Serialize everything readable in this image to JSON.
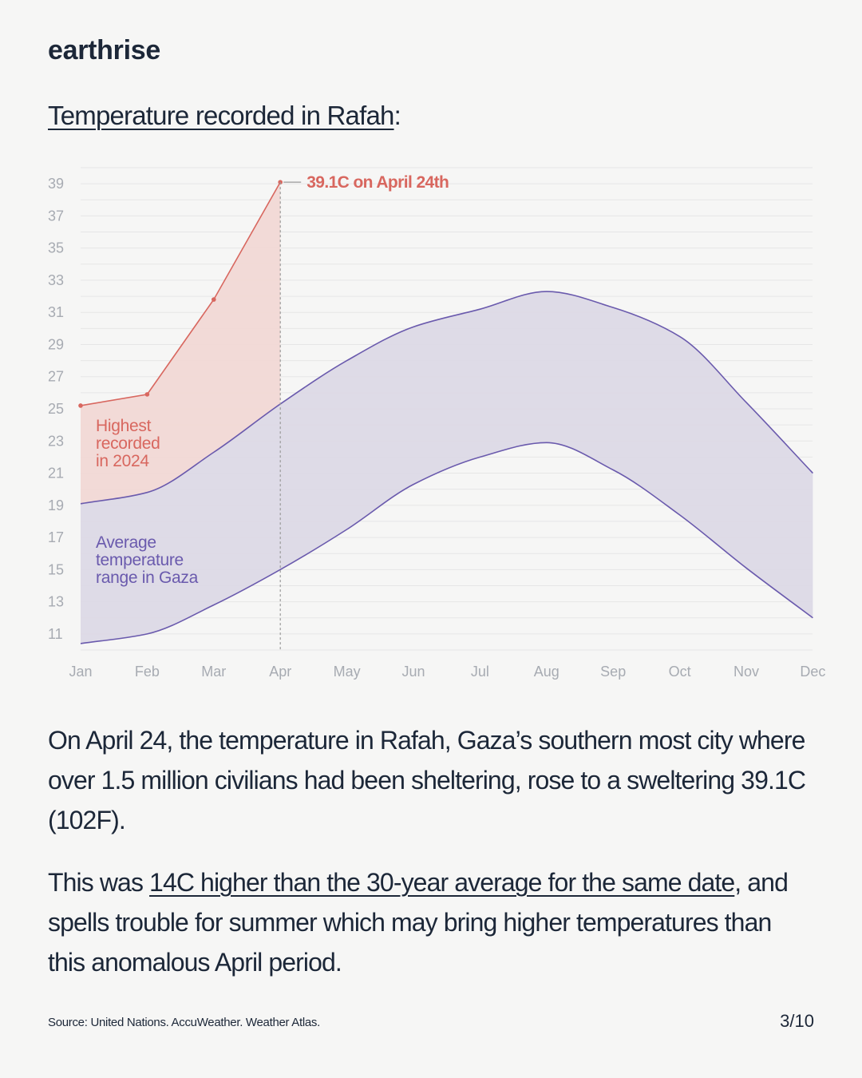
{
  "brand": "earthrise",
  "heading": {
    "link_text": "Temperature recorded in Rafah",
    "suffix": ":"
  },
  "chart_data": {
    "type": "area",
    "categories": [
      "Jan",
      "Feb",
      "Mar",
      "Apr",
      "May",
      "Jun",
      "Jul",
      "Aug",
      "Sep",
      "Oct",
      "Nov",
      "Dec"
    ],
    "yticks": [
      39,
      37,
      35,
      33,
      31,
      29,
      27,
      25,
      23,
      21,
      19,
      17,
      15,
      13,
      11
    ],
    "ylim": [
      10,
      40
    ],
    "grid": true,
    "series": [
      {
        "name": "Highest recorded in 2024",
        "name_lines": [
          "Highest",
          "recorded",
          "in 2024"
        ],
        "color": "#d8675f",
        "fill": "#f2d7d4",
        "x": [
          0,
          1,
          2,
          3
        ],
        "values": [
          25.2,
          25.9,
          31.8,
          39.1
        ]
      },
      {
        "name": "Average temperature range in Gaza",
        "name_lines": [
          "Average",
          "temperature",
          "range in Gaza"
        ],
        "color": "#6a5aad",
        "fill": "#dcd9e6",
        "x": [
          0,
          1,
          2,
          3,
          4,
          5,
          6,
          7,
          8,
          9,
          10,
          11
        ],
        "high": [
          19.1,
          19.8,
          22.3,
          25.3,
          28.0,
          30.1,
          31.2,
          32.3,
          31.3,
          29.5,
          25.4,
          21.0
        ],
        "low": [
          10.4,
          11.0,
          12.8,
          15.0,
          17.5,
          20.3,
          22.0,
          22.9,
          21.2,
          18.4,
          15.1,
          12.0
        ]
      }
    ],
    "annotation": {
      "text": "39.1C on April 24th",
      "x": 3,
      "y": 39.1,
      "color": "#d8675f"
    }
  },
  "body": {
    "p1": "On April 24, the temperature in Rafah, Gaza’s southern most city where over 1.5 million civilians had been sheltering, rose to a sweltering 39.1C (102F).",
    "p2_prefix": "This was ",
    "p2_link": "14C higher than the 30-year average for the same date",
    "p2_suffix": ", and spells trouble for summer which may bring higher temperatures than this anomalous April period."
  },
  "footer": {
    "source": "Source: United Nations. AccuWeather. Weather Atlas.",
    "page": "3/10"
  }
}
